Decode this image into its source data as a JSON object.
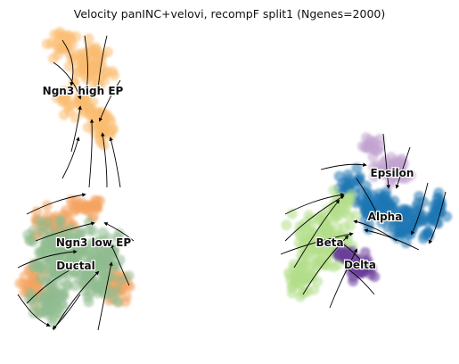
{
  "chart_data": {
    "type": "scatter",
    "title": "Velocity panINC+velovi, recompF split1 (Ngenes=2000)",
    "xlabel": "",
    "ylabel": "",
    "axes_visible": false,
    "grid": false,
    "legend": "none (cluster names drawn on the embedding)",
    "overlay": "RNA velocity streamlines (black arrows)",
    "clusters": [
      {
        "label": "Ngn3 high EP",
        "color": "#f9bb70"
      },
      {
        "label": "Ngn3 low EP",
        "color": "#f4a460"
      },
      {
        "label": "Ductal",
        "color": "#8fbc8f"
      },
      {
        "label": "Epsilon",
        "color": "#c1a3cf"
      },
      {
        "label": "Alpha",
        "color": "#1f77b4"
      },
      {
        "label": "Beta",
        "color": "#b2df8a"
      },
      {
        "label": "Delta",
        "color": "#6a3d9a"
      }
    ]
  }
}
